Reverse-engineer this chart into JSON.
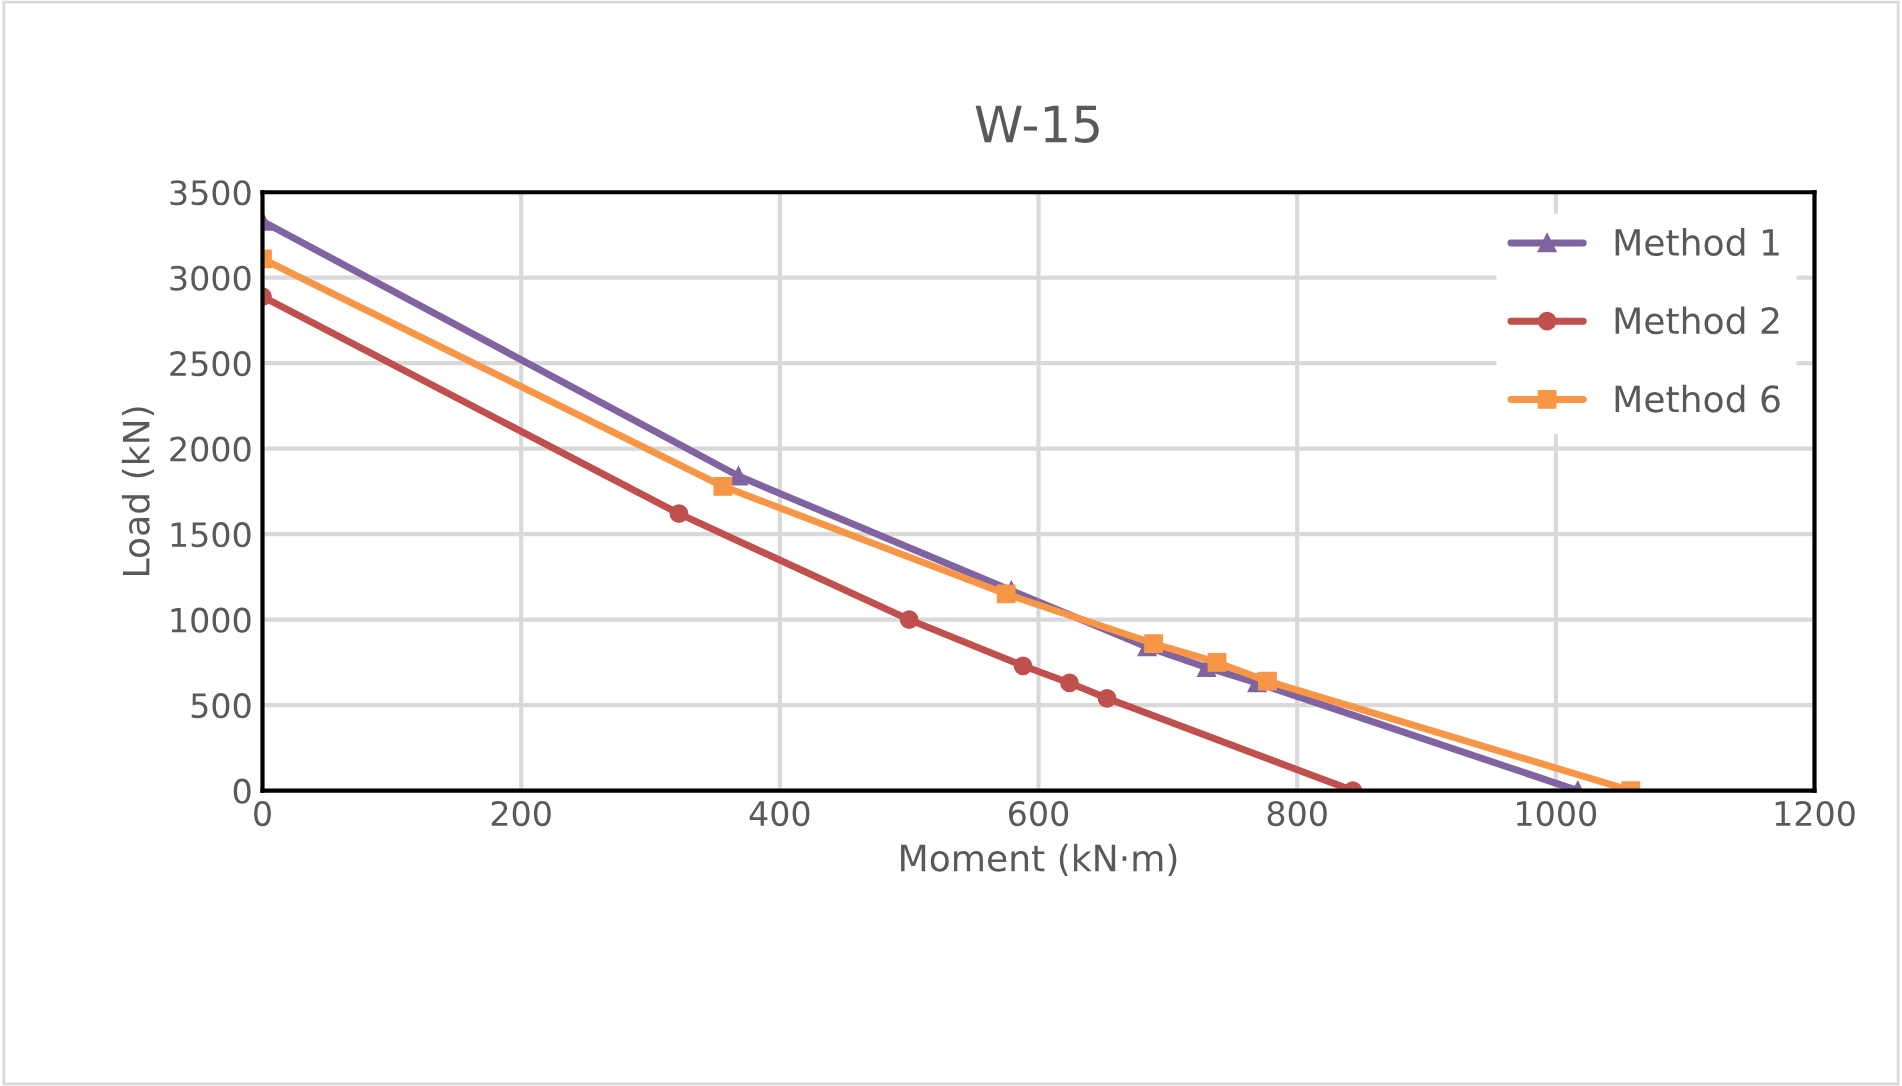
{
  "chart_data": {
    "type": "line",
    "title": "W-15",
    "xlabel": "Moment (kN·m)",
    "ylabel": "Load (kN)",
    "xlim": [
      0,
      1200
    ],
    "xticks": [
      0,
      200,
      400,
      600,
      800,
      1000,
      1200
    ],
    "ylim": [
      0,
      3500
    ],
    "yticks": [
      0,
      500,
      1000,
      1500,
      2000,
      2500,
      3000,
      3500
    ],
    "grid": true,
    "legend": "right",
    "line_style": "solid",
    "series": [
      {
        "name": "Method 1",
        "color": "#8064a2",
        "marker": "triangle",
        "x": [
          0,
          368,
          579,
          684,
          730,
          769,
          1017
        ],
        "values": [
          3330,
          1840,
          1170,
          840,
          720,
          630,
          0
        ]
      },
      {
        "name": "Method 2",
        "color": "#c0504d",
        "marker": "circle",
        "x": [
          0,
          322,
          500,
          588,
          624,
          653,
          843
        ],
        "values": [
          2890,
          1620,
          1000,
          730,
          630,
          540,
          0
        ]
      },
      {
        "name": "Method 6",
        "color": "#f79646",
        "marker": "square",
        "x": [
          0,
          356,
          575,
          689,
          738,
          777,
          1058
        ],
        "values": [
          3110,
          1780,
          1150,
          860,
          750,
          640,
          0
        ]
      }
    ]
  }
}
